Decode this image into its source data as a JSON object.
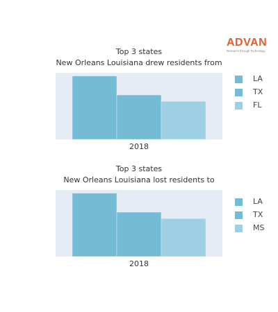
{
  "logo": {
    "name": "ADVAN",
    "tagline": "Research through Technology",
    "color": "#e85a2a"
  },
  "colors": {
    "plot_bg": "#e5ecf6",
    "bar": "#74bbd6",
    "bar_light": "#9ed0e3"
  },
  "chart_data": [
    {
      "type": "bar",
      "title": "Top 3 states",
      "subtitle": "New Orleans Louisiana drew residents from",
      "categories": [
        "2018"
      ],
      "series": [
        {
          "name": "LA",
          "values": [
            100
          ],
          "color": "#74bbd6"
        },
        {
          "name": "TX",
          "values": [
            70
          ],
          "color": "#74bbd6"
        },
        {
          "name": "FL",
          "values": [
            60
          ],
          "color": "#9ed0e3"
        }
      ],
      "ylim": [
        0,
        105
      ],
      "grid": false,
      "legend_position": "right"
    },
    {
      "type": "bar",
      "title": "Top 3 states",
      "subtitle": "New Orleans Louisiana lost residents to",
      "categories": [
        "2018"
      ],
      "series": [
        {
          "name": "LA",
          "values": [
            100
          ],
          "color": "#74bbd6"
        },
        {
          "name": "TX",
          "values": [
            70
          ],
          "color": "#74bbd6"
        },
        {
          "name": "MS",
          "values": [
            60
          ],
          "color": "#9ed0e3"
        }
      ],
      "ylim": [
        0,
        105
      ],
      "grid": false,
      "legend_position": "right"
    }
  ]
}
